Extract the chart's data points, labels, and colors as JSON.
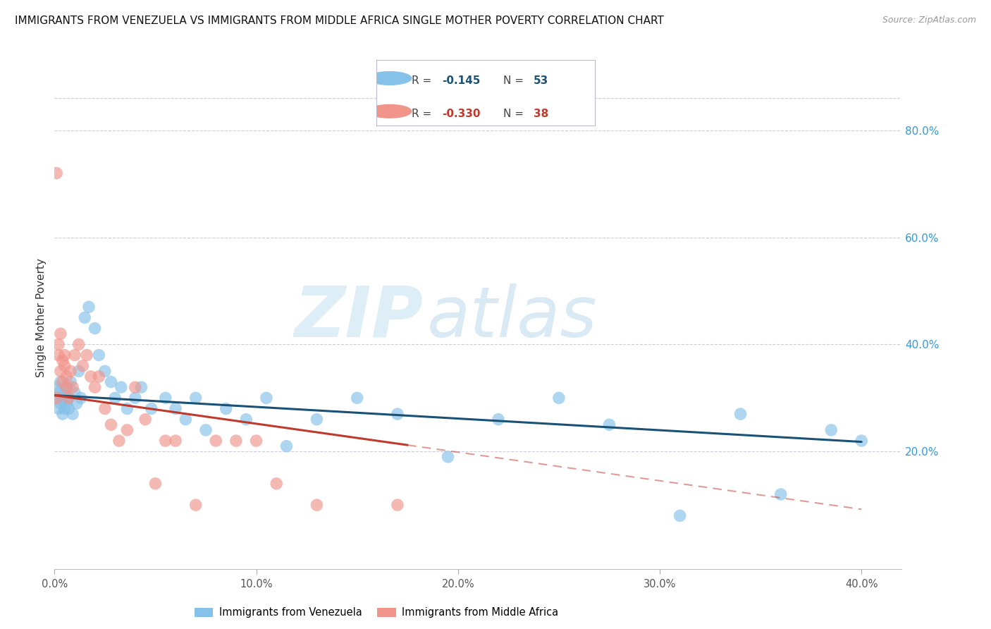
{
  "title": "IMMIGRANTS FROM VENEZUELA VS IMMIGRANTS FROM MIDDLE AFRICA SINGLE MOTHER POVERTY CORRELATION CHART",
  "source": "Source: ZipAtlas.com",
  "ylabel": "Single Mother Poverty",
  "xlim": [
    0.0,
    0.42
  ],
  "ylim": [
    -0.02,
    0.92
  ],
  "r_venezuela": -0.145,
  "n_venezuela": 53,
  "r_middle_africa": -0.33,
  "n_middle_africa": 38,
  "color_venezuela": "#85C1E9",
  "color_middle_africa": "#F1948A",
  "color_trend_venezuela": "#1A5276",
  "color_trend_middle_africa": "#C0392B",
  "watermark_zip": "ZIP",
  "watermark_atlas": "atlas",
  "venezuela_x": [
    0.001,
    0.001,
    0.002,
    0.002,
    0.003,
    0.003,
    0.004,
    0.004,
    0.005,
    0.005,
    0.006,
    0.006,
    0.007,
    0.007,
    0.008,
    0.009,
    0.01,
    0.011,
    0.012,
    0.013,
    0.015,
    0.017,
    0.02,
    0.022,
    0.025,
    0.028,
    0.03,
    0.033,
    0.036,
    0.04,
    0.043,
    0.048,
    0.055,
    0.06,
    0.065,
    0.07,
    0.075,
    0.085,
    0.095,
    0.105,
    0.115,
    0.13,
    0.15,
    0.17,
    0.195,
    0.22,
    0.25,
    0.275,
    0.31,
    0.34,
    0.36,
    0.385,
    0.4
  ],
  "venezuela_y": [
    0.3,
    0.32,
    0.31,
    0.28,
    0.33,
    0.29,
    0.3,
    0.27,
    0.31,
    0.28,
    0.29,
    0.32,
    0.3,
    0.28,
    0.33,
    0.27,
    0.31,
    0.29,
    0.35,
    0.3,
    0.45,
    0.47,
    0.43,
    0.38,
    0.35,
    0.33,
    0.3,
    0.32,
    0.28,
    0.3,
    0.32,
    0.28,
    0.3,
    0.28,
    0.26,
    0.3,
    0.24,
    0.28,
    0.26,
    0.3,
    0.21,
    0.26,
    0.3,
    0.27,
    0.19,
    0.26,
    0.3,
    0.25,
    0.08,
    0.27,
    0.12,
    0.24,
    0.22
  ],
  "middle_africa_x": [
    0.001,
    0.001,
    0.002,
    0.002,
    0.003,
    0.003,
    0.004,
    0.004,
    0.005,
    0.005,
    0.006,
    0.006,
    0.007,
    0.008,
    0.009,
    0.01,
    0.012,
    0.014,
    0.016,
    0.018,
    0.02,
    0.022,
    0.025,
    0.028,
    0.032,
    0.036,
    0.04,
    0.045,
    0.05,
    0.055,
    0.06,
    0.07,
    0.08,
    0.09,
    0.1,
    0.11,
    0.13,
    0.17
  ],
  "middle_africa_y": [
    0.72,
    0.3,
    0.38,
    0.4,
    0.35,
    0.42,
    0.37,
    0.33,
    0.38,
    0.36,
    0.34,
    0.32,
    0.3,
    0.35,
    0.32,
    0.38,
    0.4,
    0.36,
    0.38,
    0.34,
    0.32,
    0.34,
    0.28,
    0.25,
    0.22,
    0.24,
    0.32,
    0.26,
    0.14,
    0.22,
    0.22,
    0.1,
    0.22,
    0.22,
    0.22,
    0.14,
    0.1,
    0.1
  ],
  "trend_ven_x0": 0.0,
  "trend_ven_x1": 0.4,
  "trend_ven_y0": 0.305,
  "trend_ven_y1": 0.218,
  "trend_mid_x0": 0.0,
  "trend_mid_x1": 0.175,
  "trend_mid_y0": 0.305,
  "trend_mid_y1": 0.212,
  "trend_mid_dash_x0": 0.175,
  "trend_mid_dash_x1": 0.4,
  "trend_mid_dash_y0": 0.212,
  "trend_mid_dash_y1": 0.092
}
